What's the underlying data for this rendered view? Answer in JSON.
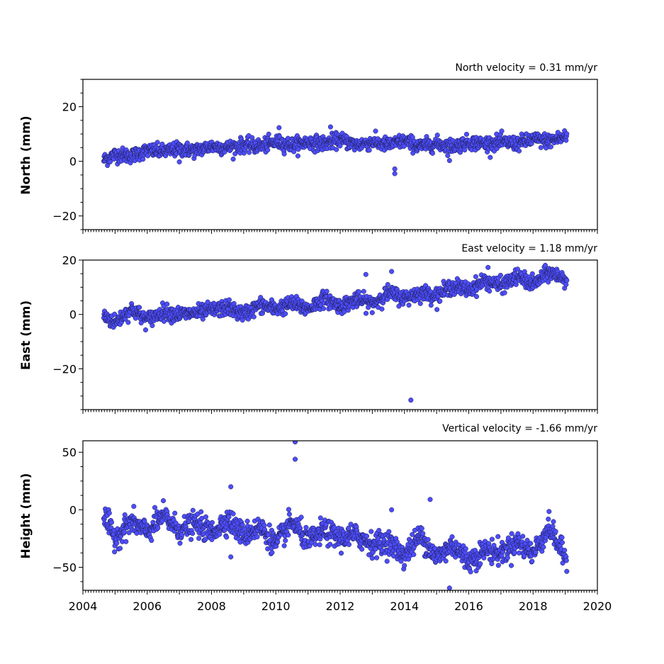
{
  "chart_data": [
    {
      "type": "scatter",
      "title": "North velocity = 0.31 mm/yr",
      "xlabel": "",
      "ylabel": "North (mm)",
      "xlim": [
        2004,
        2020
      ],
      "ylim": [
        -25,
        30
      ],
      "yticks": [
        -20,
        0,
        20
      ],
      "ytick_labels": [
        "−20",
        "0",
        "20"
      ],
      "point_color": "#4d4dff",
      "edge_color": "#1a1a40",
      "x_range": [
        2004.65,
        2019.05
      ],
      "velocity_mm_per_yr": 0.31,
      "series_points": [
        [
          2004.65,
          0.5
        ],
        [
          2005.0,
          2.5
        ],
        [
          2005.5,
          2.0
        ],
        [
          2006.0,
          4.0
        ],
        [
          2006.5,
          3.5
        ],
        [
          2007.0,
          4.5
        ],
        [
          2007.5,
          4.0
        ],
        [
          2008.0,
          5.5
        ],
        [
          2008.5,
          5.0
        ],
        [
          2009.0,
          6.0
        ],
        [
          2009.5,
          5.5
        ],
        [
          2010.0,
          7.0
        ],
        [
          2010.5,
          6.0
        ],
        [
          2011.0,
          7.0
        ],
        [
          2011.5,
          6.5
        ],
        [
          2012.0,
          8.0
        ],
        [
          2012.5,
          6.0
        ],
        [
          2013.0,
          7.0
        ],
        [
          2013.5,
          6.0
        ],
        [
          2014.0,
          7.5
        ],
        [
          2014.5,
          5.5
        ],
        [
          2015.0,
          6.5
        ],
        [
          2015.5,
          5.5
        ],
        [
          2016.0,
          7.0
        ],
        [
          2016.5,
          6.5
        ],
        [
          2017.0,
          7.0
        ],
        [
          2017.5,
          6.5
        ],
        [
          2018.0,
          8.0
        ],
        [
          2018.5,
          7.5
        ],
        [
          2019.0,
          9.0
        ]
      ],
      "outliers": [
        [
          2010.1,
          12.3
        ],
        [
          2011.7,
          12.6
        ],
        [
          2013.7,
          -2.8
        ],
        [
          2013.7,
          -4.5
        ],
        [
          2007.0,
          -0.2
        ],
        [
          2015.4,
          0.3
        ]
      ]
    },
    {
      "type": "scatter",
      "title": "East velocity = 1.18 mm/yr",
      "xlabel": "",
      "ylabel": "East (mm)",
      "xlim": [
        2004,
        2020
      ],
      "ylim": [
        -35,
        20
      ],
      "yticks": [
        -20,
        0,
        20
      ],
      "ytick_labels": [
        "−20",
        "0",
        "20"
      ],
      "point_color": "#4d4dff",
      "edge_color": "#1a1a40",
      "x_range": [
        2004.65,
        2019.05
      ],
      "velocity_mm_per_yr": 1.18,
      "series_points": [
        [
          2004.65,
          -0.5
        ],
        [
          2005.0,
          -3.0
        ],
        [
          2005.5,
          2.0
        ],
        [
          2006.0,
          -2.0
        ],
        [
          2006.5,
          1.0
        ],
        [
          2007.0,
          0.0
        ],
        [
          2007.5,
          0.5
        ],
        [
          2008.0,
          1.5
        ],
        [
          2008.5,
          2.5
        ],
        [
          2009.0,
          0.0
        ],
        [
          2009.5,
          3.5
        ],
        [
          2010.0,
          2.0
        ],
        [
          2010.5,
          4.0
        ],
        [
          2011.0,
          2.0
        ],
        [
          2011.5,
          6.0
        ],
        [
          2012.0,
          3.0
        ],
        [
          2012.5,
          5.5
        ],
        [
          2013.0,
          4.0
        ],
        [
          2013.5,
          8.0
        ],
        [
          2014.0,
          6.0
        ],
        [
          2014.5,
          8.0
        ],
        [
          2015.0,
          7.0
        ],
        [
          2015.5,
          10.5
        ],
        [
          2016.0,
          9.0
        ],
        [
          2016.5,
          12.5
        ],
        [
          2017.0,
          10.5
        ],
        [
          2017.5,
          14.0
        ],
        [
          2018.0,
          11.0
        ],
        [
          2018.5,
          15.5
        ],
        [
          2019.0,
          13.0
        ]
      ],
      "outliers": [
        [
          2014.2,
          -31.5
        ],
        [
          2012.8,
          14.7
        ],
        [
          2013.6,
          15.8
        ],
        [
          2016.6,
          17.3
        ]
      ]
    },
    {
      "type": "scatter",
      "title": "Vertical velocity = -1.66 mm/yr",
      "xlabel": "",
      "ylabel": "Height (mm)",
      "xlim": [
        2004,
        2020
      ],
      "ylim": [
        -70,
        60
      ],
      "yticks": [
        -50,
        0,
        50
      ],
      "ytick_labels": [
        "−50",
        "0",
        "50"
      ],
      "xticks": [
        2004,
        2006,
        2008,
        2010,
        2012,
        2014,
        2016,
        2018,
        2020
      ],
      "xtick_labels": [
        "2004",
        "2006",
        "2008",
        "2010",
        "2012",
        "2014",
        "2016",
        "2018",
        "2020"
      ],
      "point_color": "#4d4dff",
      "edge_color": "#1a1a40",
      "x_range": [
        2004.65,
        2019.05
      ],
      "velocity_mm_per_yr": -1.66,
      "series_points": [
        [
          2004.65,
          -5.0
        ],
        [
          2005.0,
          -25.0
        ],
        [
          2005.5,
          -10.0
        ],
        [
          2006.0,
          -20.0
        ],
        [
          2006.5,
          -5.0
        ],
        [
          2007.0,
          -18.0
        ],
        [
          2007.5,
          -12.0
        ],
        [
          2008.0,
          -20.0
        ],
        [
          2008.5,
          -8.0
        ],
        [
          2009.0,
          -22.0
        ],
        [
          2009.5,
          -15.0
        ],
        [
          2010.0,
          -30.0
        ],
        [
          2010.5,
          -10.0
        ],
        [
          2011.0,
          -28.0
        ],
        [
          2011.5,
          -18.0
        ],
        [
          2012.0,
          -25.0
        ],
        [
          2012.5,
          -22.0
        ],
        [
          2013.0,
          -30.0
        ],
        [
          2013.5,
          -28.0
        ],
        [
          2014.0,
          -40.0
        ],
        [
          2014.5,
          -22.0
        ],
        [
          2015.0,
          -42.0
        ],
        [
          2015.5,
          -30.0
        ],
        [
          2016.0,
          -45.0
        ],
        [
          2016.5,
          -35.0
        ],
        [
          2017.0,
          -38.0
        ],
        [
          2017.5,
          -28.0
        ],
        [
          2018.0,
          -38.0
        ],
        [
          2018.5,
          -15.0
        ],
        [
          2019.0,
          -42.0
        ]
      ],
      "outliers": [
        [
          2010.6,
          59.0
        ],
        [
          2010.6,
          44.0
        ],
        [
          2008.6,
          20.0
        ],
        [
          2014.8,
          9.0
        ],
        [
          2013.6,
          0.0
        ],
        [
          2015.4,
          -68.0
        ],
        [
          2008.6,
          -41.0
        ]
      ]
    }
  ]
}
